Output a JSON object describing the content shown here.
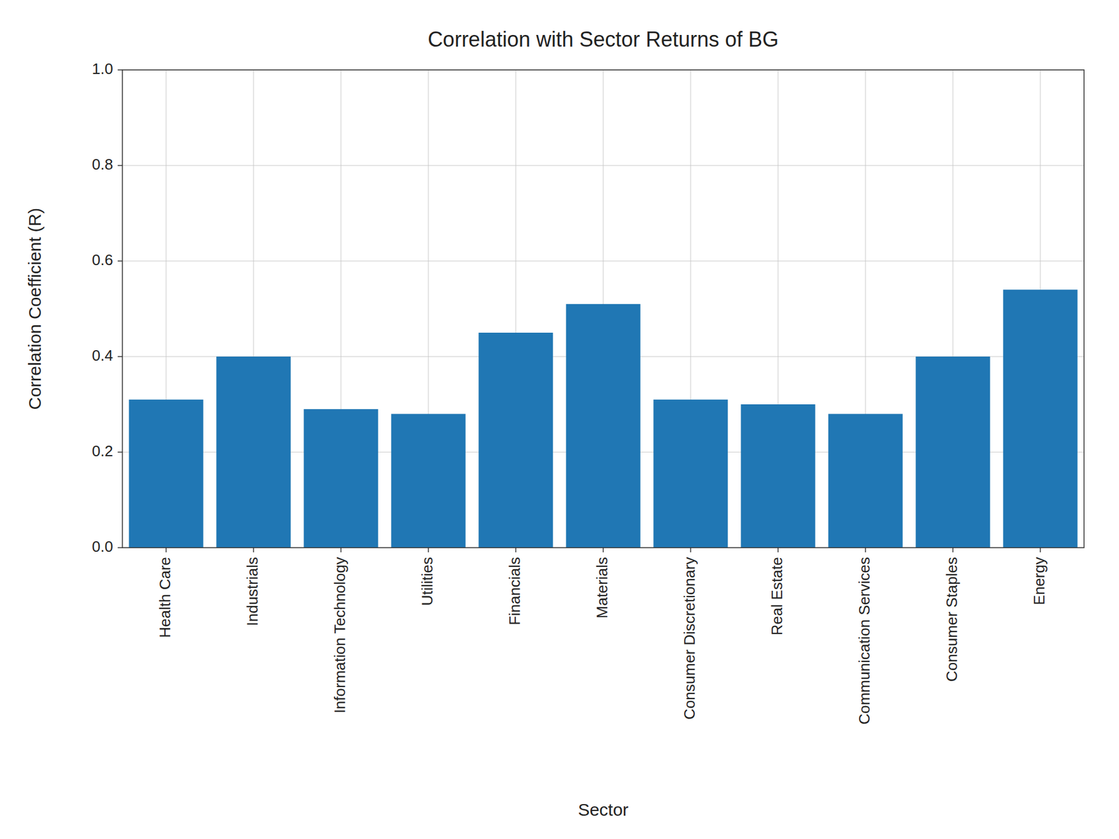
{
  "chart_data": {
    "type": "bar",
    "title": "Correlation with Sector Returns of BG",
    "xlabel": "Sector",
    "ylabel": "Correlation Coefficient (R)",
    "categories": [
      "Health Care",
      "Industrials",
      "Information Technology",
      "Utilities",
      "Financials",
      "Materials",
      "Consumer Discretionary",
      "Real Estate",
      "Communication Services",
      "Consumer Staples",
      "Energy"
    ],
    "values": [
      0.31,
      0.4,
      0.29,
      0.28,
      0.45,
      0.51,
      0.31,
      0.3,
      0.28,
      0.4,
      0.54
    ],
    "color": "#2077b4",
    "ylim": [
      0.0,
      1.0
    ],
    "yticks": [
      {
        "value": 0.0,
        "label": "0.0"
      },
      0.2,
      0.4,
      0.6,
      0.8,
      {
        "value": 1.0,
        "label": "1.0"
      }
    ],
    "grid": true
  }
}
